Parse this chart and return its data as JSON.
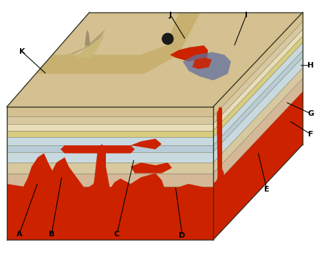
{
  "fig_width": 4.74,
  "fig_height": 3.76,
  "dpi": 100,
  "background_color": "#ffffff",
  "colors": {
    "red_magma": "#cc2200",
    "sand_top": "#d4c090",
    "tan_mesa": "#c8b070",
    "cream_layer": "#e8ddb8",
    "blue_layer": "#b8ccd8",
    "lt_blue_layer": "#c8dae0",
    "yellow_layer": "#d8cc80",
    "gray_layer": "#c0c8c8",
    "beige_layer": "#d8c8a0",
    "pink_layer": "#d4b898",
    "ash_plume": "#6070a0",
    "volcanic_neck": "#a09878",
    "outline": "#333322"
  },
  "labels": [
    "A",
    "B",
    "C",
    "D",
    "E",
    "F",
    "G",
    "H",
    "I",
    "J",
    "K"
  ]
}
